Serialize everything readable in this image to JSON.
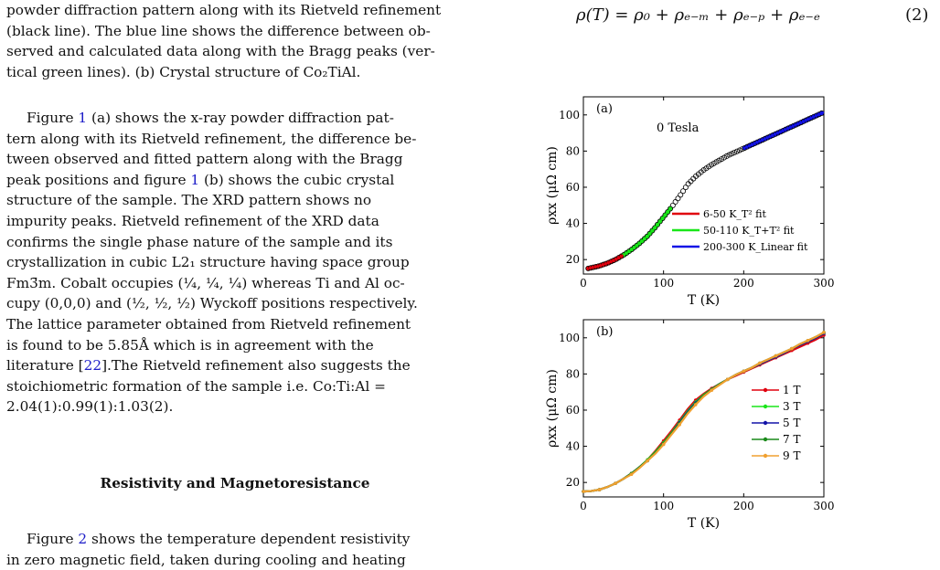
{
  "caption_lines": [
    "powder diffraction pattern along with its Rietveld refinement",
    "(black line). The blue line shows the difference between ob-",
    "served and calculated data along with the Bragg peaks (ver-",
    "tical green lines). (b) Crystal structure of Co₂TiAl."
  ],
  "paragraph1": [
    {
      "pre": "Figure ",
      "ref": "1",
      "post": " (a) shows the x-ray powder diffraction pat-"
    },
    {
      "pre": "tern along with its Rietveld refinement, the difference be-"
    },
    {
      "pre": "tween observed and fitted pattern along with the Bragg"
    },
    {
      "pre": "peak positions and figure ",
      "ref": "1",
      "post": " (b) shows the cubic crystal"
    },
    {
      "pre": "structure of the sample.  The XRD pattern shows no"
    },
    {
      "pre": "impurity peaks. Rietveld refinement of the XRD data"
    },
    {
      "pre": "confirms the single phase nature of the sample and its"
    },
    {
      "pre": "crystallization in cubic L2₁ structure having space group"
    },
    {
      "pre": "Fm3̄m. Cobalt occupies (¼, ¼, ¼) whereas Ti and Al oc-"
    },
    {
      "pre": "cupy (0,0,0) and (½, ½, ½) Wyckoff positions respectively."
    },
    {
      "pre": "The lattice parameter obtained from Rietveld refinement"
    },
    {
      "pre": "is found to be 5.85Å which is in agreement with the"
    },
    {
      "pre": "literature [",
      "ref": "22",
      "post": "].The Rietveld refinement also suggests the"
    },
    {
      "pre": "stoichiometric formation of the sample i.e.  Co:Ti:Al ="
    },
    {
      "pre": "2.04(1):0.99(1):1.03(2)."
    }
  ],
  "section_heading": "Resistivity and Magnetoresistance",
  "paragraph2": [
    {
      "pre": "Figure ",
      "ref": "2",
      "post": " shows the temperature dependent resistivity"
    },
    {
      "pre": "in zero magnetic field, taken during cooling and heating"
    }
  ],
  "equation": {
    "text": "ρ(T) = ρ₀ + ρₑ₋ₘ + ρₑ₋ₚ + ρₑ₋ₑ",
    "number": "(2)"
  },
  "colors": {
    "text": "#111111",
    "reference": "#1c1cc8"
  },
  "chart_data": [
    {
      "type": "line",
      "panel_label": "(a)",
      "annotation": "0 Tesla",
      "xlabel": "T (K)",
      "ylabel": "ρxx (μΩ cm)",
      "xlim": [
        0,
        300
      ],
      "ylim": [
        12,
        110
      ],
      "xticks": [
        0,
        100,
        200,
        300
      ],
      "yticks": [
        20,
        40,
        60,
        80,
        100
      ],
      "legend_position": "bottom-right",
      "data": {
        "x": [
          5,
          10,
          20,
          30,
          40,
          50,
          60,
          70,
          80,
          90,
          100,
          110,
          120,
          130,
          140,
          150,
          160,
          170,
          180,
          190,
          200,
          210,
          220,
          230,
          240,
          250,
          260,
          270,
          280,
          290,
          300
        ],
        "y": [
          15,
          15.5,
          16.5,
          18,
          20,
          22.5,
          25.5,
          29,
          33,
          38,
          43.5,
          49,
          55,
          61.5,
          66,
          69.5,
          72.5,
          75,
          77.5,
          79.5,
          81.5,
          83.5,
          85.5,
          87.5,
          89.5,
          91.5,
          93.5,
          95.5,
          97.5,
          99.5,
          101.5
        ]
      },
      "data_color": "#000000",
      "fits": [
        {
          "name": "6-50 K_T² fit",
          "color": "#e0000e",
          "x_range": [
            6,
            50
          ]
        },
        {
          "name": "50-110 K_T+T² fit",
          "color": "#19e619",
          "x_range": [
            50,
            110
          ]
        },
        {
          "name": "200-300 K_Linear fit",
          "color": "#1313e6",
          "x_range": [
            200,
            300
          ]
        }
      ]
    },
    {
      "type": "line",
      "panel_label": "(b)",
      "xlabel": "T (K)",
      "ylabel": "ρxx (μΩ cm)",
      "xlim": [
        0,
        300
      ],
      "ylim": [
        12,
        110
      ],
      "xticks": [
        0,
        100,
        200,
        300
      ],
      "yticks": [
        20,
        40,
        60,
        80,
        100
      ],
      "legend_position": "right",
      "x": [
        0,
        10,
        20,
        30,
        40,
        50,
        60,
        70,
        80,
        90,
        100,
        110,
        120,
        130,
        140,
        150,
        160,
        170,
        180,
        190,
        200,
        210,
        220,
        230,
        240,
        250,
        260,
        270,
        280,
        290,
        300
      ],
      "series": [
        {
          "name": "1 T",
          "color": "#e0000e",
          "y": [
            15,
            15.3,
            16,
            17.5,
            19.5,
            22,
            25,
            28.5,
            32.5,
            37.5,
            43,
            48.5,
            54.5,
            60.5,
            65.5,
            69,
            72,
            74.5,
            77,
            79,
            81,
            83,
            85,
            87,
            89,
            91,
            93,
            95,
            97,
            99,
            101.5
          ]
        },
        {
          "name": "3 T",
          "color": "#19e619",
          "y": [
            15,
            15.3,
            16,
            17.5,
            19.5,
            22,
            25,
            28.5,
            32.5,
            37,
            42,
            47.5,
            53.5,
            59.5,
            64.5,
            68.5,
            71.5,
            74.5,
            77,
            79.5,
            81.5,
            83.5,
            85.5,
            87.5,
            89.5,
            91.5,
            94,
            96,
            98,
            100,
            102.5
          ]
        },
        {
          "name": "5 T",
          "color": "#1313a8",
          "y": [
            15,
            15.3,
            16,
            17.5,
            19.5,
            22,
            25,
            28.5,
            32,
            36.5,
            41.5,
            47,
            53,
            59,
            64,
            68,
            71.5,
            74.5,
            77,
            79.5,
            81.5,
            83.5,
            85.5,
            87.5,
            89.5,
            91.5,
            94,
            96,
            98,
            100,
            102.5
          ]
        },
        {
          "name": "7 T",
          "color": "#1a8a1a",
          "y": [
            15,
            15.3,
            16,
            17.5,
            19.5,
            22,
            25,
            28.5,
            32,
            36.5,
            41.5,
            47,
            52.5,
            58.5,
            63.5,
            68,
            71.5,
            74.5,
            77,
            79.5,
            81.5,
            83.5,
            86,
            88,
            90,
            92,
            94,
            96.5,
            98.5,
            100.5,
            103
          ]
        },
        {
          "name": "9 T",
          "color": "#f0a030",
          "y": [
            15,
            15.3,
            16,
            17.5,
            19.5,
            22,
            24.5,
            28,
            32,
            36,
            41,
            46.5,
            52,
            58,
            63,
            67.5,
            71,
            74,
            77,
            79.5,
            81.5,
            83.5,
            86,
            88,
            90,
            92,
            94,
            96.5,
            98.5,
            100.5,
            103
          ]
        }
      ]
    }
  ]
}
